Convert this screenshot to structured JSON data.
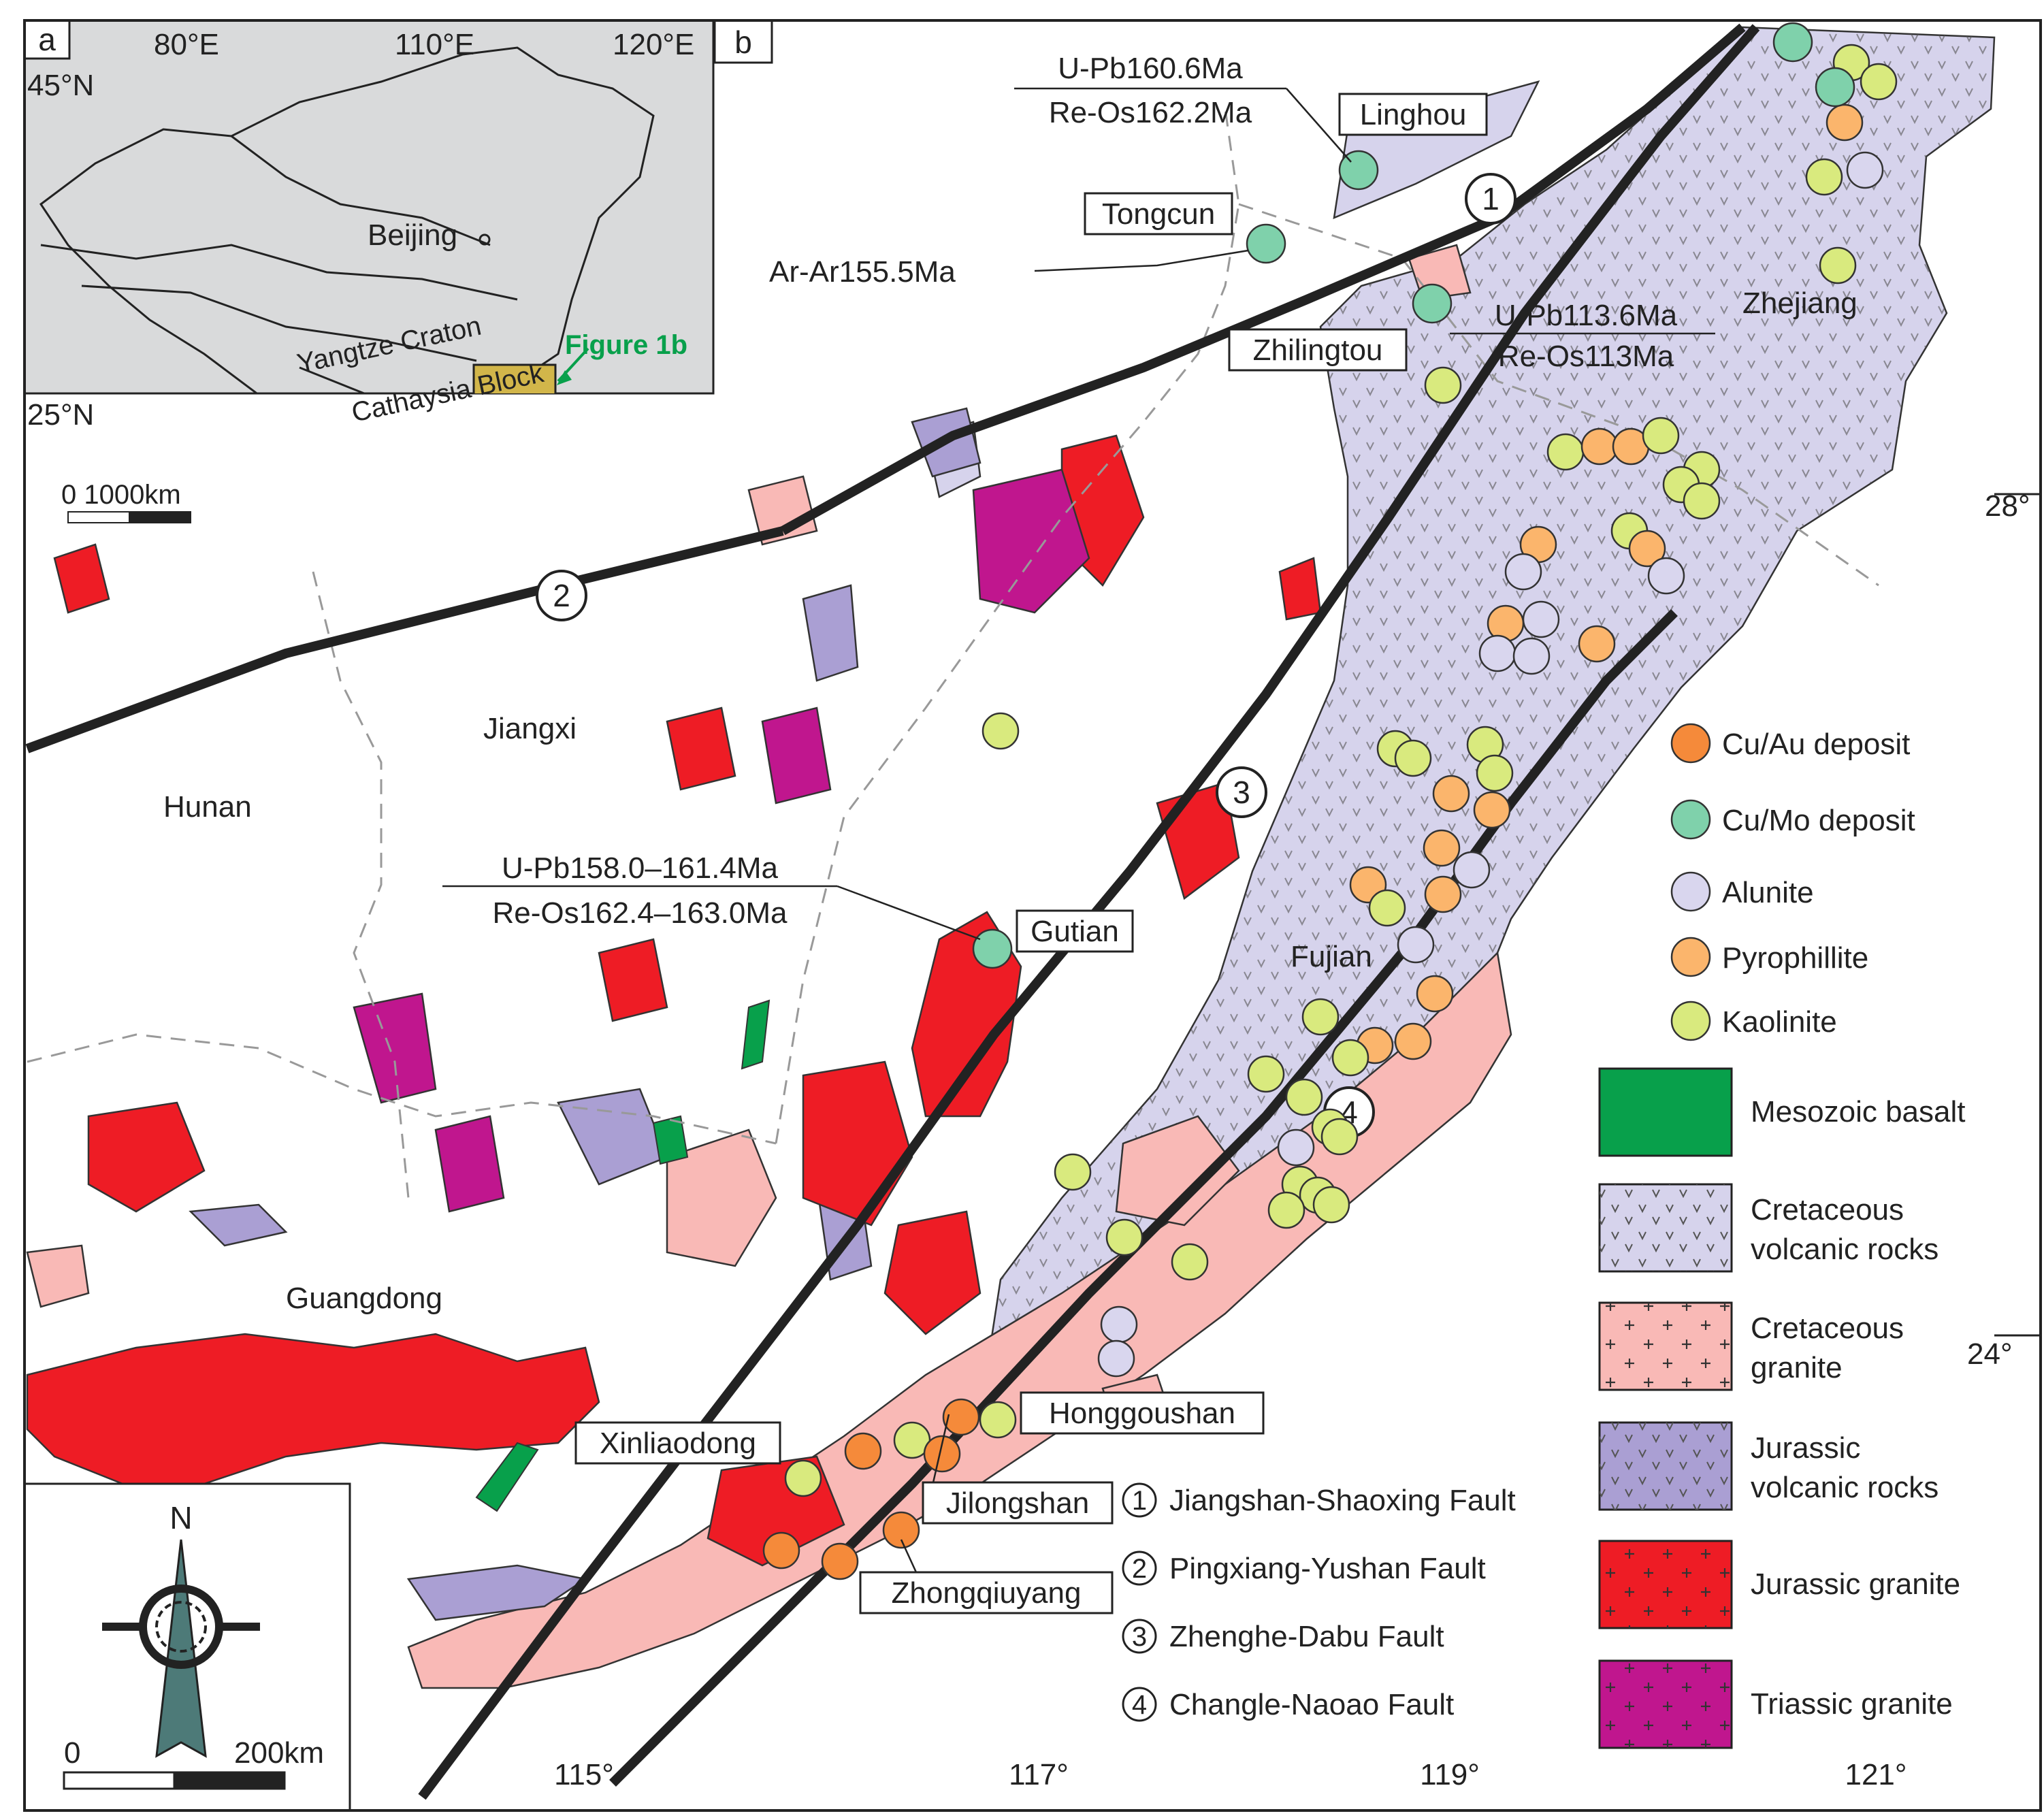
{
  "panel_a": {
    "label": "a",
    "lon_labels": [
      "80°E",
      "110°E",
      "120°E"
    ],
    "lat_labels": [
      "45°N",
      "25°N"
    ],
    "place": "Beijing",
    "units": [
      "Yangtze Craton",
      "Cathaysia Block"
    ],
    "callout": "Figure 1b",
    "scale": "0   1000km"
  },
  "panel_b": {
    "label": "b",
    "lon_labels": [
      "115°",
      "117°",
      "119°",
      "121°"
    ],
    "lat_labels": [
      "28°",
      "24°"
    ],
    "provinces": [
      "Hunan",
      "Jiangxi",
      "Guangdong",
      "Fujian",
      "Zhejiang"
    ],
    "deposits": [
      "Linghou",
      "Tongcun",
      "Zhilingtou",
      "Gutian",
      "Xinliaodong",
      "Honggoushan",
      "Jilongshan",
      "Zhongqiuyang"
    ],
    "ages": {
      "linghou_top": "U-Pb160.6Ma",
      "linghou_bottom": "Re-Os162.2Ma",
      "tongcun": "Ar-Ar155.5Ma",
      "zhilingtou_top": "U-Pb113.6Ma",
      "zhilingtou_bottom": "Re-Os113Ma",
      "gutian_top": "U-Pb158.0–161.4Ma",
      "gutian_bottom": "Re-Os162.4–163.0Ma"
    },
    "fault_numbers": [
      "1",
      "2",
      "3",
      "4"
    ],
    "faults": [
      {
        "num": "1",
        "name": "Jiangshan-Shaoxing Fault"
      },
      {
        "num": "2",
        "name": "Pingxiang-Yushan Fault"
      },
      {
        "num": "3",
        "name": "Zhenghe-Dabu Fault"
      },
      {
        "num": "4",
        "name": "Changle-Naoao Fault"
      }
    ],
    "north": "N",
    "scale_zero": "0",
    "scale_len": "200km"
  },
  "legend": {
    "points": [
      {
        "label": "Cu/Au deposit",
        "color": "#f58a3a"
      },
      {
        "label": "Cu/Mo deposit",
        "color": "#7fd1ab"
      },
      {
        "label": "Alunite",
        "color": "#d9d6ee"
      },
      {
        "label": "Pyrophillite",
        "color": "#fbb56c"
      },
      {
        "label": "Kaolinite",
        "color": "#d9ea7e"
      }
    ],
    "units": [
      {
        "l1": "Mesozoic basalt",
        "l2": "",
        "color": "#08a04b",
        "sym": ""
      },
      {
        "l1": "Cretaceous",
        "l2": "volcanic rocks",
        "color": "#d6d3ec",
        "sym": "v"
      },
      {
        "l1": "Cretaceous",
        "l2": "granite",
        "color": "#f9b9b6",
        "sym": "+"
      },
      {
        "l1": "Jurassic",
        "l2": "volcanic rocks",
        "color": "#aa9fd3",
        "sym": "v"
      },
      {
        "l1": "Jurassic granite",
        "l2": "",
        "color": "#ee1c25",
        "sym": "+"
      },
      {
        "l1": "Triassic granite",
        "l2": "",
        "color": "#c0168e",
        "sym": "+"
      }
    ]
  }
}
